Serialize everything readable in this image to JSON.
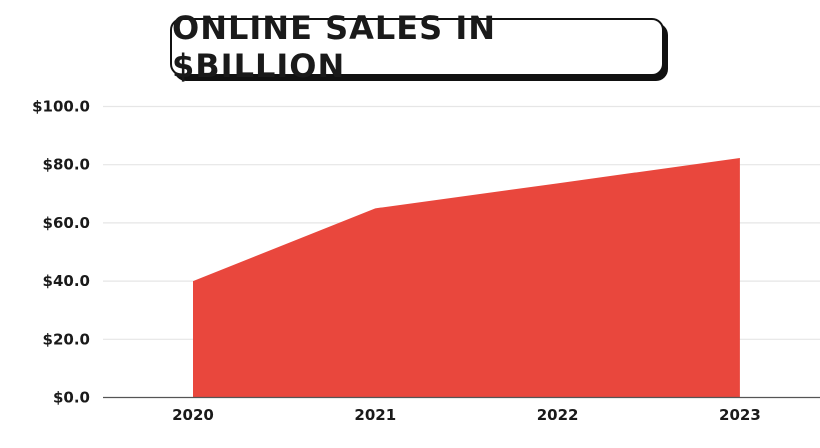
{
  "chart_data": {
    "type": "area",
    "title": "ONLINE SALES IN $BILLION",
    "xlabel": "",
    "ylabel": "",
    "categories": [
      "2020",
      "2021",
      "2022",
      "2023"
    ],
    "values": [
      40,
      65,
      73.6,
      82.3
    ],
    "ylim": [
      0,
      100
    ],
    "yticks": [
      "$0.0",
      "$20.0",
      "$40.0",
      "$60.0",
      "$80.0",
      "$100.0"
    ],
    "ytick_values": [
      0,
      20,
      40,
      60,
      80,
      100
    ],
    "grid": "horizontal",
    "legend": "none",
    "colors": {
      "area": "#e9473d",
      "grid": "#e6e6e6",
      "axis": "#555555",
      "text": "#1a1a1a"
    }
  }
}
